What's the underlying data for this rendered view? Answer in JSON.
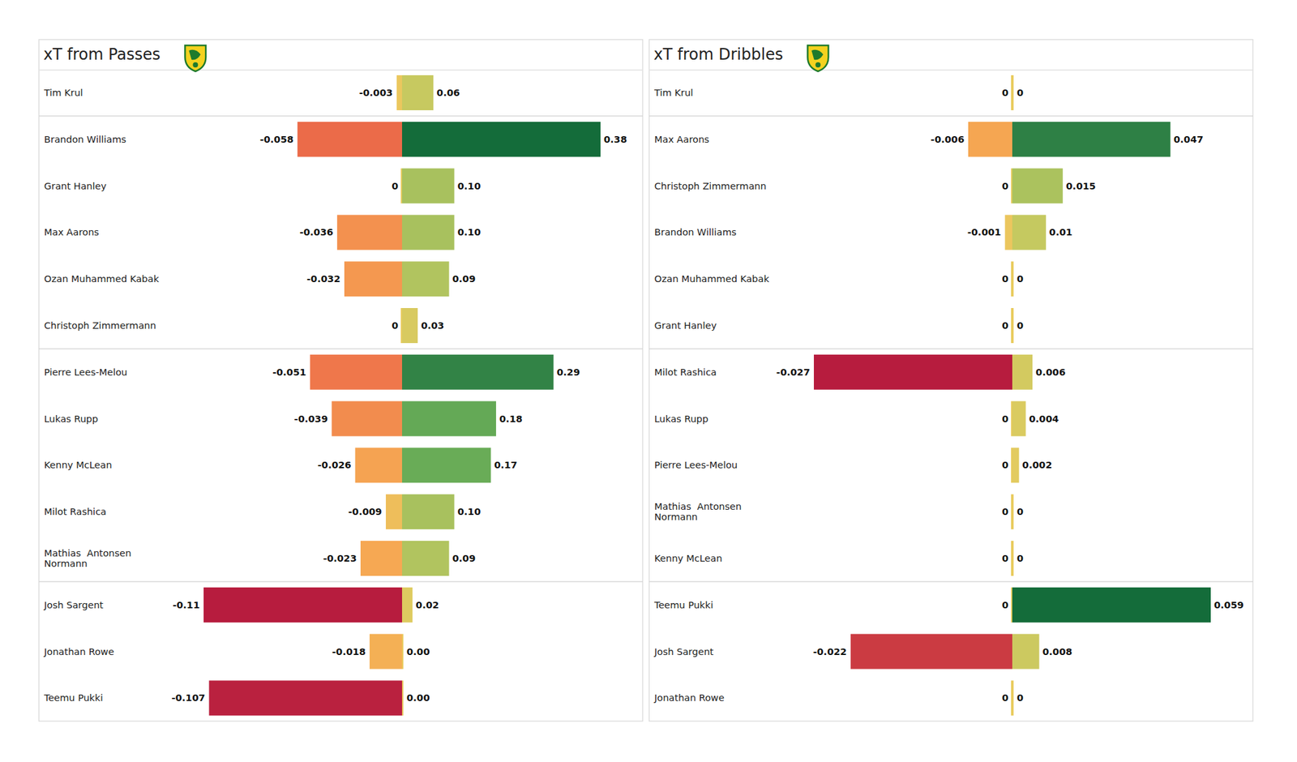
{
  "chart_data": [
    {
      "type": "bar",
      "title": "xT from Passes",
      "orientation": "horizontal",
      "data_labels": true,
      "tick_labels": false,
      "categories": [
        "Tim Krul",
        "Brandon Williams",
        "Grant Hanley",
        "Max Aarons",
        "Ozan Muhammed Kabak",
        "Christoph Zimmermann",
        "Pierre Lees-Melou",
        "Lukas Rupp",
        "Kenny McLean",
        "Milot Rashica",
        "Mathias  Antonsen\nNormann",
        "Josh Sargent",
        "Jonathan Rowe",
        "Teemu Pukki"
      ],
      "series": [
        {
          "values": [
            -0.003,
            -0.058,
            0,
            -0.036,
            -0.032,
            0,
            -0.051,
            -0.039,
            -0.026,
            -0.009,
            -0.023,
            -0.11,
            -0.018,
            -0.107
          ]
        },
        {
          "values": [
            0.06,
            0.38,
            0.1,
            0.1,
            0.09,
            0.03,
            0.29,
            0.18,
            0.17,
            0.1,
            0.09,
            0.02,
            0,
            0
          ],
          "value_labels": [
            "0.06",
            "0.38",
            "0.10",
            "0.10",
            "0.09",
            "0.03",
            "0.29",
            "0.18",
            "0.17",
            "0.10",
            "0.09",
            "0.02",
            "0.00",
            "0.00"
          ]
        }
      ]
    },
    {
      "type": "bar",
      "title": "xT from Dribbles",
      "orientation": "horizontal",
      "data_labels": true,
      "tick_labels": false,
      "categories": [
        "Tim Krul",
        "Max Aarons",
        "Christoph Zimmermann",
        "Brandon Williams",
        "Ozan Muhammed Kabak",
        "Grant Hanley",
        "Milot Rashica",
        "Lukas Rupp",
        "Pierre Lees-Melou",
        "Mathias  Antonsen\nNormann",
        "Kenny McLean",
        "Teemu Pukki",
        "Josh Sargent",
        "Jonathan Rowe"
      ],
      "series": [
        {
          "values": [
            0,
            -0.006,
            0,
            -0.001,
            0,
            0,
            -0.027,
            0,
            0,
            0,
            0,
            0,
            -0.022,
            0
          ]
        },
        {
          "values": [
            0,
            0.047,
            0.015,
            0.01,
            0,
            0,
            0.006,
            0.004,
            0.002,
            0,
            0,
            0.059,
            0.008,
            0
          ]
        }
      ]
    }
  ]
}
